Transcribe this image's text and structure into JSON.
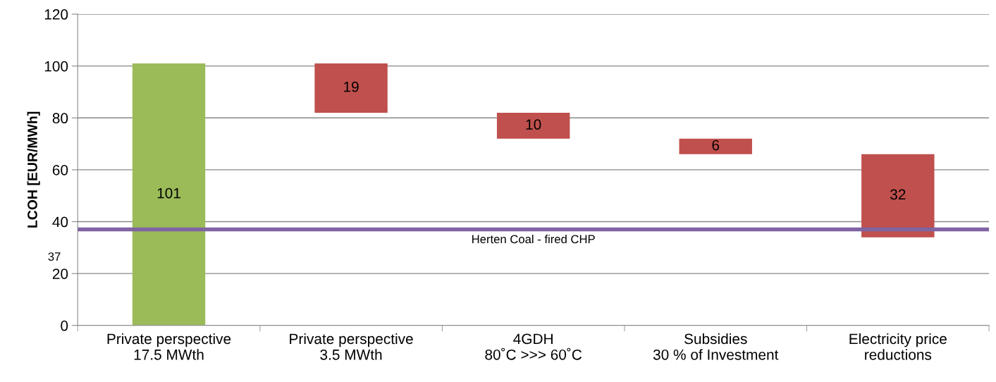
{
  "chart_data": {
    "type": "bar",
    "ylabel": "LCOH [EUR/MWh]",
    "categories": [
      "Private perspective\n17.5 MWth",
      "Private perspective\n3.5 MWth",
      "4GDH\n80˚C >>> 60˚C",
      "Subsidies\n30 % of Investment",
      "Electricity price\nreductions"
    ],
    "values": [
      101,
      19,
      10,
      6,
      32
    ],
    "base": [
      0,
      82,
      72,
      66,
      34
    ],
    "colors": [
      "#9bbb59",
      "#c0504d",
      "#c0504d",
      "#c0504d",
      "#c0504d"
    ],
    "data_labels": true,
    "ylim": [
      0,
      120
    ],
    "yticks": [
      0,
      20,
      40,
      60,
      80,
      100,
      120
    ],
    "grid": "y",
    "ref_lines": [
      {
        "axis": "y",
        "value": 37,
        "label": "Herten Coal - fired CHP",
        "color": "#8064a2",
        "line_style": "solid"
      }
    ],
    "annotations": [
      "37"
    ]
  }
}
